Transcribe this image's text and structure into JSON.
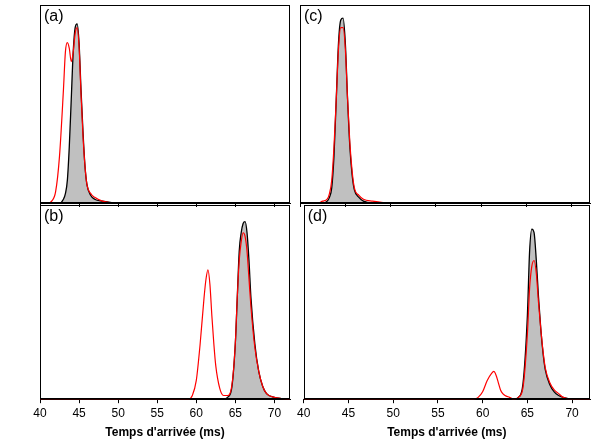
{
  "chart_data": [
    {
      "type": "line",
      "title": "(a)",
      "x": [
        40,
        41,
        41.5,
        42,
        42.5,
        43,
        43.25,
        43.5,
        43.75,
        44,
        44.25,
        44.5,
        44.75,
        45,
        45.25,
        45.5,
        45.75,
        46,
        46.5,
        47,
        48,
        50,
        55,
        60,
        65,
        70,
        72
      ],
      "series": [
        {
          "type": "area",
          "color": "#000000",
          "values": [
            0,
            0,
            0,
            0,
            0,
            0.02,
            0.05,
            0.12,
            0.3,
            0.55,
            0.8,
            0.93,
            0.95,
            0.85,
            0.6,
            0.38,
            0.2,
            0.1,
            0.04,
            0.02,
            0.01,
            0,
            0,
            0,
            0,
            0,
            0
          ]
        },
        {
          "type": "line",
          "color": "#ff0000",
          "values": [
            0,
            0,
            0.01,
            0.06,
            0.25,
            0.6,
            0.8,
            0.85,
            0.82,
            0.75,
            0.8,
            0.9,
            0.93,
            0.83,
            0.58,
            0.36,
            0.2,
            0.1,
            0.05,
            0.03,
            0.01,
            0,
            0,
            0,
            0,
            0,
            0
          ]
        }
      ],
      "xlim": [
        40,
        72
      ],
      "xticks": [
        40,
        45,
        50,
        55,
        60,
        65,
        70
      ],
      "ylim": [
        0,
        1.05
      ],
      "grid": false,
      "tick_labels": false
    },
    {
      "type": "line",
      "title": "(b)",
      "xlabel": "Temps d'arrivée (ms)",
      "x": [
        40,
        45,
        50,
        55,
        58,
        59,
        59.5,
        60,
        60.5,
        61,
        61.25,
        61.5,
        61.75,
        62,
        62.25,
        62.5,
        63,
        63.5,
        64,
        64.5,
        65,
        65.25,
        65.5,
        65.75,
        66,
        66.25,
        66.5,
        66.75,
        67,
        67.5,
        68,
        68.5,
        69,
        70,
        72
      ],
      "series": [
        {
          "type": "area",
          "color": "#000000",
          "values": [
            0,
            0,
            0,
            0,
            0,
            0,
            0,
            0,
            0,
            0,
            0,
            0,
            0,
            0,
            0,
            0,
            0,
            0,
            0.01,
            0.05,
            0.3,
            0.55,
            0.8,
            0.9,
            0.95,
            0.96,
            0.9,
            0.75,
            0.55,
            0.3,
            0.15,
            0.07,
            0.03,
            0.01,
            0
          ]
        },
        {
          "type": "line",
          "color": "#ff0000",
          "values": [
            0,
            0,
            0,
            0,
            0,
            0,
            0.02,
            0.1,
            0.3,
            0.55,
            0.65,
            0.7,
            0.62,
            0.45,
            0.3,
            0.18,
            0.06,
            0.02,
            0.02,
            0.06,
            0.3,
            0.55,
            0.75,
            0.85,
            0.9,
            0.88,
            0.8,
            0.65,
            0.5,
            0.28,
            0.15,
            0.07,
            0.03,
            0.01,
            0
          ]
        }
      ],
      "xlim": [
        40,
        72
      ],
      "xticks": [
        40,
        45,
        50,
        55,
        60,
        65,
        70
      ],
      "ylim": [
        0,
        1.05
      ],
      "grid": false,
      "tick_labels": "x"
    },
    {
      "type": "line",
      "title": "(c)",
      "x": [
        40,
        41,
        41.5,
        42,
        42.5,
        43,
        43.25,
        43.5,
        43.75,
        44,
        44.25,
        44.5,
        44.75,
        45,
        45.25,
        45.5,
        45.75,
        46,
        46.5,
        47,
        48,
        50,
        55,
        60,
        65,
        70,
        72
      ],
      "series": [
        {
          "type": "area",
          "color": "#000000",
          "values": [
            0,
            0,
            0,
            0,
            0,
            0.01,
            0.03,
            0.08,
            0.25,
            0.55,
            0.85,
            0.97,
            0.98,
            0.85,
            0.55,
            0.3,
            0.15,
            0.07,
            0.03,
            0.01,
            0,
            0,
            0,
            0,
            0,
            0,
            0
          ]
        },
        {
          "type": "line",
          "color": "#ff0000",
          "values": [
            0,
            0,
            0,
            0,
            0.01,
            0.02,
            0.05,
            0.12,
            0.3,
            0.55,
            0.82,
            0.93,
            0.93,
            0.82,
            0.55,
            0.32,
            0.17,
            0.08,
            0.04,
            0.02,
            0.01,
            0,
            0,
            0,
            0,
            0,
            0
          ]
        }
      ],
      "xlim": [
        40,
        72
      ],
      "xticks": [
        40,
        45,
        50,
        55,
        60,
        65,
        70
      ],
      "ylim": [
        0,
        1.05
      ],
      "grid": false,
      "tick_labels": false
    },
    {
      "type": "line",
      "title": "(d)",
      "xlabel": "Temps d'arrivée (ms)",
      "x": [
        40,
        45,
        50,
        55,
        58,
        59,
        59.5,
        60,
        60.5,
        61,
        61.25,
        61.5,
        61.75,
        62,
        62.25,
        62.5,
        63,
        63.5,
        64,
        64.5,
        65,
        65.25,
        65.5,
        65.75,
        66,
        66.25,
        66.5,
        66.75,
        67,
        67.5,
        68,
        68.5,
        69,
        70,
        72
      ],
      "series": [
        {
          "type": "area",
          "color": "#000000",
          "values": [
            0,
            0,
            0,
            0,
            0,
            0,
            0,
            0,
            0,
            0,
            0,
            0,
            0,
            0,
            0,
            0,
            0,
            0,
            0.01,
            0.08,
            0.45,
            0.8,
            0.92,
            0.9,
            0.75,
            0.55,
            0.38,
            0.25,
            0.16,
            0.08,
            0.04,
            0.02,
            0.01,
            0,
            0
          ]
        },
        {
          "type": "line",
          "color": "#ff0000",
          "values": [
            0,
            0,
            0,
            0,
            0,
            0,
            0.01,
            0.04,
            0.1,
            0.14,
            0.15,
            0.13,
            0.09,
            0.05,
            0.03,
            0.02,
            0.01,
            0,
            0.01,
            0.06,
            0.35,
            0.6,
            0.72,
            0.75,
            0.68,
            0.52,
            0.38,
            0.26,
            0.17,
            0.09,
            0.05,
            0.03,
            0.01,
            0,
            0
          ]
        }
      ],
      "xlim": [
        40,
        72
      ],
      "xticks": [
        40,
        45,
        50,
        55,
        60,
        65,
        70
      ],
      "ylim": [
        0,
        1.05
      ],
      "grid": false,
      "tick_labels": "x"
    }
  ]
}
